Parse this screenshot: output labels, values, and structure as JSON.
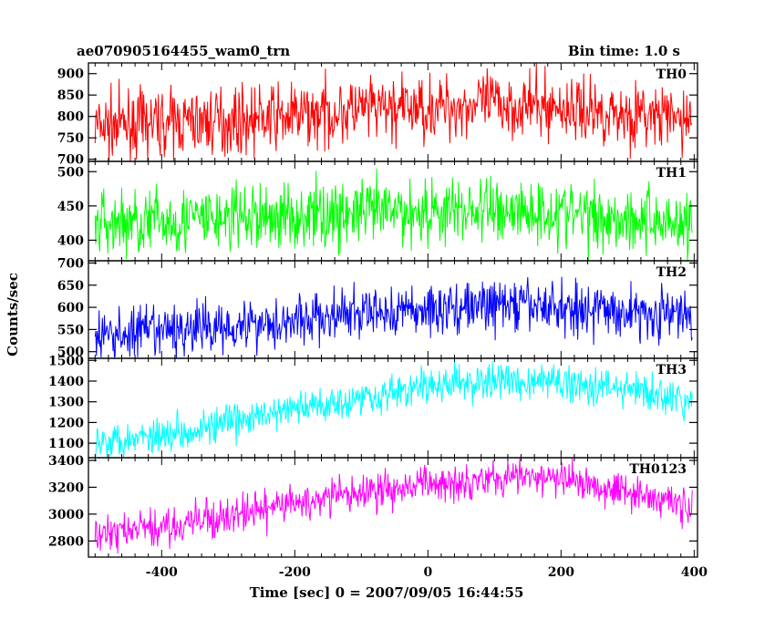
{
  "chart_data": {
    "type": "line",
    "title": "ae070905164455_wam0_trn",
    "subtitle": "Bin time: 1.0 s",
    "xlabel": "Time [sec] 0 = 2007/09/05 16:44:55",
    "ylabel": "Counts/sec",
    "xlim": [
      -510,
      405
    ],
    "x_ticks": [
      -400,
      -200,
      0,
      200,
      400
    ],
    "grid": false,
    "series": [
      {
        "name": "TH0",
        "color": "#ff0000",
        "ylim": [
          695,
          925
        ],
        "y_ticks": [
          700,
          750,
          800,
          850,
          900
        ],
        "trend": {
          "x": [
            -500,
            -400,
            -300,
            -200,
            -100,
            0,
            100,
            200,
            300,
            400
          ],
          "y": [
            775,
            785,
            790,
            800,
            815,
            820,
            830,
            820,
            805,
            790
          ]
        },
        "noise": 38
      },
      {
        "name": "TH1",
        "color": "#00ff00",
        "ylim": [
          370,
          515
        ],
        "y_ticks": [
          400,
          450,
          500
        ],
        "trend": {
          "x": [
            -500,
            -400,
            -300,
            -200,
            -100,
            0,
            100,
            200,
            300,
            400
          ],
          "y": [
            425,
            428,
            432,
            435,
            440,
            442,
            445,
            440,
            432,
            425
          ]
        },
        "noise": 25
      },
      {
        "name": "TH2",
        "color": "#0000ff",
        "ylim": [
          485,
          705
        ],
        "y_ticks": [
          500,
          550,
          600,
          650,
          700
        ],
        "trend": {
          "x": [
            -500,
            -400,
            -300,
            -200,
            -100,
            0,
            100,
            200,
            300,
            400
          ],
          "y": [
            535,
            545,
            560,
            570,
            585,
            595,
            605,
            600,
            590,
            580
          ]
        },
        "noise": 30
      },
      {
        "name": "TH3",
        "color": "#00ffff",
        "ylim": [
          1030,
          1510
        ],
        "y_ticks": [
          1100,
          1200,
          1300,
          1400,
          1500
        ],
        "trend": {
          "x": [
            -500,
            -400,
            -300,
            -200,
            -100,
            0,
            100,
            200,
            300,
            400
          ],
          "y": [
            1110,
            1145,
            1195,
            1265,
            1320,
            1375,
            1400,
            1395,
            1365,
            1285
          ]
        },
        "noise": 45
      },
      {
        "name": "TH0123",
        "color": "#ff00ff",
        "ylim": [
          2680,
          3420
        ],
        "y_ticks": [
          2800,
          3000,
          3200,
          3400
        ],
        "trend": {
          "x": [
            -500,
            -400,
            -300,
            -200,
            -100,
            0,
            100,
            200,
            300,
            400
          ],
          "y": [
            2850,
            2900,
            2980,
            3080,
            3160,
            3220,
            3280,
            3260,
            3180,
            3040
          ]
        },
        "noise": 70
      }
    ]
  }
}
